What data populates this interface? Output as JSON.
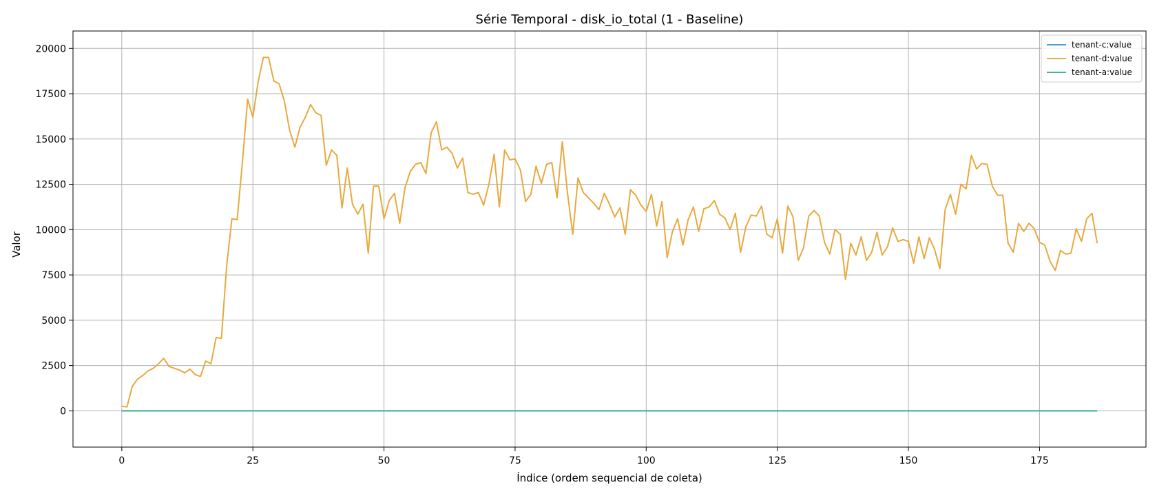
{
  "chart_data": {
    "type": "line",
    "title": "Série Temporal - disk_io_total (1 - Baseline)",
    "xlabel": "Índice (ordem sequencial de coleta)",
    "ylabel": "Valor",
    "xlim": [
      -9.3,
      195.3
    ],
    "ylim": [
      -2000,
      20960
    ],
    "xticks": [
      0,
      25,
      50,
      75,
      100,
      125,
      150,
      175
    ],
    "yticks": [
      0,
      2500,
      5000,
      7500,
      10000,
      12500,
      15000,
      17500,
      20000
    ],
    "grid": true,
    "legend_position": "top-right",
    "series": [
      {
        "name": "tenant-c:value",
        "color": "#4a9fd9",
        "values": [
          0,
          0,
          0,
          0,
          0,
          0,
          0,
          0,
          0,
          0,
          0,
          0,
          0,
          0,
          0,
          0,
          0,
          0,
          0,
          0,
          0,
          0,
          0,
          0,
          0,
          0,
          0,
          0,
          0,
          0,
          0,
          0,
          0,
          0,
          0,
          0,
          0,
          0,
          0,
          0,
          0,
          0,
          0,
          0,
          0,
          0,
          0,
          0,
          0,
          0,
          0,
          0,
          0,
          0,
          0,
          0,
          0,
          0,
          0,
          0,
          0,
          0,
          0,
          0,
          0,
          0,
          0,
          0,
          0,
          0,
          0,
          0,
          0,
          0,
          0,
          0,
          0,
          0,
          0,
          0,
          0,
          0,
          0,
          0,
          0,
          0,
          0,
          0,
          0,
          0,
          0,
          0,
          0,
          0,
          0,
          0,
          0,
          0,
          0,
          0,
          0,
          0,
          0,
          0,
          0,
          0,
          0,
          0,
          0,
          0,
          0,
          0,
          0,
          0,
          0,
          0,
          0,
          0,
          0,
          0,
          0,
          0,
          0,
          0,
          0,
          0,
          0,
          0,
          0,
          0,
          0,
          0,
          0,
          0,
          0,
          0,
          0,
          0,
          0,
          0,
          0,
          0,
          0,
          0,
          0,
          0,
          0,
          0,
          0,
          0,
          0,
          0,
          0,
          0,
          0,
          0,
          0,
          0,
          0,
          0,
          0,
          0,
          0,
          0,
          0,
          0,
          0,
          0,
          0,
          0,
          0,
          0,
          0,
          0,
          0,
          0,
          0,
          0,
          0,
          0,
          0,
          0,
          0,
          0,
          0,
          0,
          0
        ]
      },
      {
        "name": "tenant-d:value",
        "color": "#e8a93e",
        "values": [
          250,
          220,
          1350,
          1750,
          1950,
          2200,
          2350,
          2600,
          2900,
          2450,
          2350,
          2250,
          2100,
          2300,
          2000,
          1900,
          2750,
          2600,
          4050,
          4000,
          8000,
          10600,
          10550,
          13700,
          17200,
          16200,
          18150,
          19500,
          19500,
          18200,
          18050,
          17100,
          15500,
          14550,
          15650,
          16200,
          16900,
          16450,
          16300,
          13550,
          14400,
          14100,
          11200,
          13400,
          11400,
          10850,
          11400,
          8700,
          12400,
          12400,
          10600,
          11600,
          12000,
          10350,
          12300,
          13200,
          13600,
          13700,
          13100,
          15350,
          15950,
          14400,
          14550,
          14200,
          13400,
          13950,
          12050,
          11950,
          12050,
          11350,
          12500,
          14150,
          11250,
          14400,
          13850,
          13900,
          13300,
          11550,
          11950,
          13500,
          12550,
          13600,
          13700,
          11750,
          14850,
          12000,
          9750,
          12850,
          12050,
          11750,
          11450,
          11100,
          12000,
          11400,
          10700,
          11200,
          9750,
          12200,
          11900,
          11350,
          11000,
          11950,
          10200,
          11550,
          8450,
          9900,
          10600,
          9150,
          10550,
          11250,
          9900,
          11150,
          11250,
          11600,
          10850,
          10650,
          10000,
          10900,
          8750,
          10150,
          10800,
          10750,
          11300,
          9750,
          9550,
          10600,
          8700,
          11300,
          10700,
          8300,
          9000,
          10750,
          11050,
          10750,
          9300,
          8650,
          10000,
          9750,
          7250,
          9250,
          8600,
          9600,
          8300,
          8750,
          9850,
          8600,
          9050,
          10100,
          9350,
          9450,
          9350,
          8150,
          9600,
          8400,
          9550,
          8900,
          7850,
          11100,
          11950,
          10850,
          12500,
          12250,
          14100,
          13350,
          13650,
          13600,
          12400,
          11900,
          11900,
          9250,
          8750,
          10350,
          9900,
          10350,
          10050,
          9300,
          9150,
          8250,
          7750,
          8850,
          8650,
          8700,
          10050,
          9350,
          10600,
          10900,
          9250
        ]
      },
      {
        "name": "tenant-a:value",
        "color": "#43b893",
        "values": [
          0,
          0,
          0,
          0,
          0,
          0,
          0,
          0,
          0,
          0,
          0,
          0,
          0,
          0,
          0,
          0,
          0,
          0,
          0,
          0,
          0,
          0,
          0,
          0,
          0,
          0,
          0,
          0,
          0,
          0,
          0,
          0,
          0,
          0,
          0,
          0,
          0,
          0,
          0,
          0,
          0,
          0,
          0,
          0,
          0,
          0,
          0,
          0,
          0,
          0,
          0,
          0,
          0,
          0,
          0,
          0,
          0,
          0,
          0,
          0,
          0,
          0,
          0,
          0,
          0,
          0,
          0,
          0,
          0,
          0,
          0,
          0,
          0,
          0,
          0,
          0,
          0,
          0,
          0,
          0,
          0,
          0,
          0,
          0,
          0,
          0,
          0,
          0,
          0,
          0,
          0,
          0,
          0,
          0,
          0,
          0,
          0,
          0,
          0,
          0,
          0,
          0,
          0,
          0,
          0,
          0,
          0,
          0,
          0,
          0,
          0,
          0,
          0,
          0,
          0,
          0,
          0,
          0,
          0,
          0,
          0,
          0,
          0,
          0,
          0,
          0,
          0,
          0,
          0,
          0,
          0,
          0,
          0,
          0,
          0,
          0,
          0,
          0,
          0,
          0,
          0,
          0,
          0,
          0,
          0,
          0,
          0,
          0,
          0,
          0,
          0,
          0,
          0,
          0,
          0,
          0,
          0,
          0,
          0,
          0,
          0,
          0,
          0,
          0,
          0,
          0,
          0,
          0,
          0,
          0,
          0,
          0,
          0,
          0,
          0,
          0,
          0,
          0,
          0,
          0,
          0,
          0,
          0,
          0,
          0,
          0,
          0
        ]
      }
    ]
  }
}
